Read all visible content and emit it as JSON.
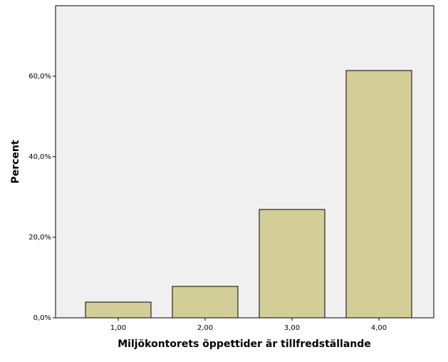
{
  "chart_data": {
    "type": "bar",
    "x_label": "Miljökontorets öppettider är tillfredställande",
    "y_label": "Percent",
    "categories": [
      "1,00",
      "2,00",
      "3,00",
      "4,00"
    ],
    "values": [
      3.9,
      7.8,
      26.9,
      61.4
    ],
    "color": "#d3ce97",
    "ylim": [
      0,
      77.5
    ],
    "yticks": [
      {
        "value": 0,
        "label": "0,0%"
      },
      {
        "value": 20,
        "label": "20,0%"
      },
      {
        "value": 40,
        "label": "40,0%"
      },
      {
        "value": 60,
        "label": "60,0%"
      }
    ]
  }
}
